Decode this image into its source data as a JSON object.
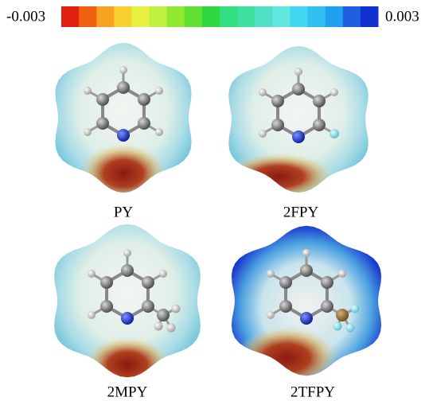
{
  "colorbar": {
    "min_label": "-0.003",
    "max_label": "0.003"
  },
  "molecules": [
    {
      "label": "PY"
    },
    {
      "label": "2FPY"
    },
    {
      "label": "2MPY"
    },
    {
      "label": "2TFPY"
    }
  ]
}
